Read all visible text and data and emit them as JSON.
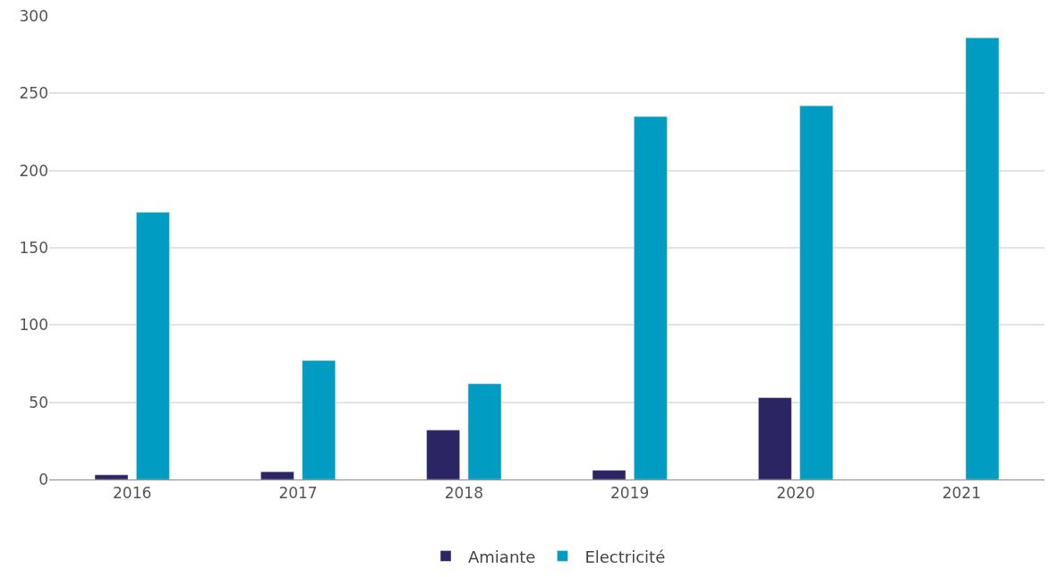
{
  "chart_data": {
    "type": "bar",
    "categories": [
      "2016",
      "2017",
      "2018",
      "2019",
      "2020",
      "2021"
    ],
    "series": [
      {
        "name": "Amiante",
        "color": "#2b2564",
        "values": [
          3,
          5,
          32,
          6,
          53,
          null
        ]
      },
      {
        "name": "Electricité",
        "color": "#009cc1",
        "values": [
          173,
          77,
          62,
          235,
          242,
          286
        ]
      }
    ],
    "ylim": [
      0,
      300
    ],
    "yticks": [
      0,
      50,
      100,
      150,
      200,
      250,
      300
    ],
    "grid": "y",
    "legend": "bottom"
  }
}
